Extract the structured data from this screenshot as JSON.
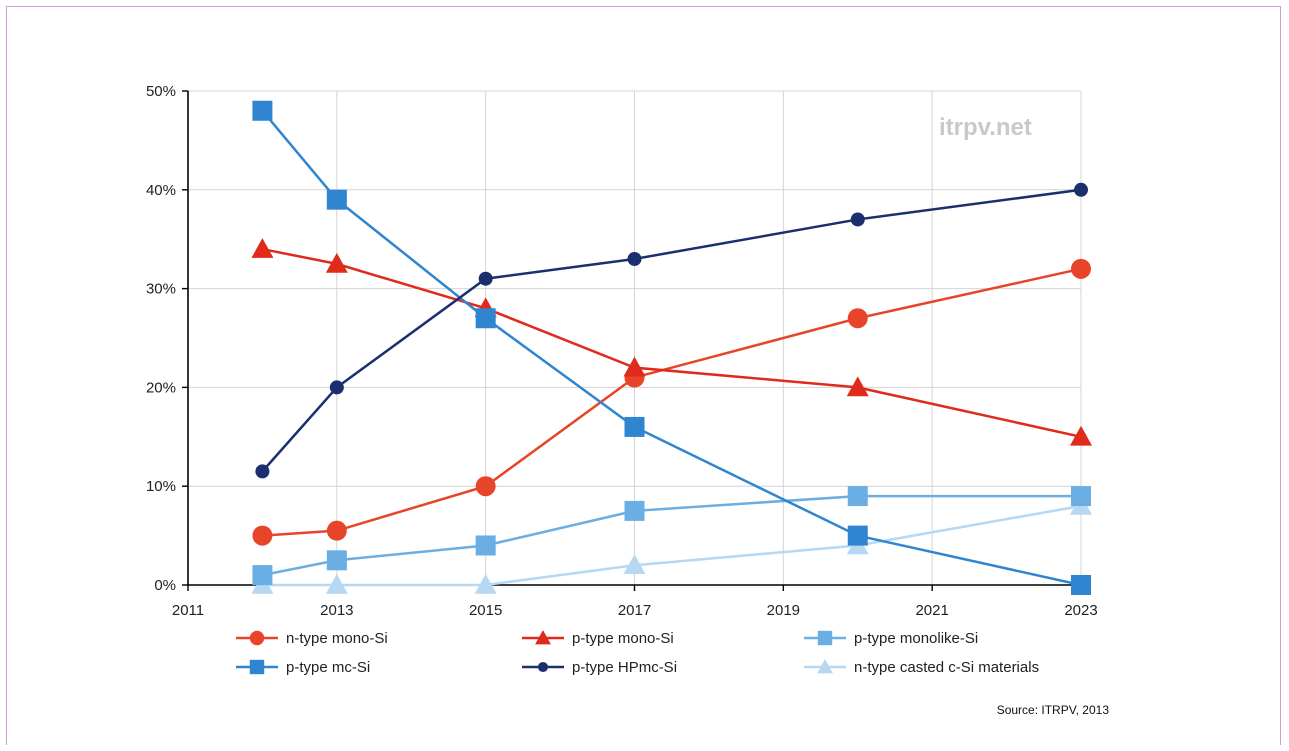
{
  "watermark": "itrpv.net",
  "source": "Source: ITRPV, 2013",
  "chart_data": {
    "type": "line",
    "title": "",
    "xlabel": "",
    "ylabel": "",
    "xlim": [
      2011,
      2023
    ],
    "ylim": [
      0,
      50
    ],
    "x_ticks": [
      2011,
      2013,
      2015,
      2017,
      2019,
      2021,
      2023
    ],
    "y_ticks": [
      0,
      10,
      20,
      30,
      40,
      50
    ],
    "y_tick_labels": [
      "0%",
      "10%",
      "20%",
      "30%",
      "40%",
      "50%"
    ],
    "grid": true,
    "legend_position": "bottom",
    "series": [
      {
        "name": "n-type mono-Si",
        "marker": "circle",
        "color": "#e8442a",
        "x": [
          2012,
          2013,
          2015,
          2017,
          2020,
          2023
        ],
        "values": [
          5,
          5.5,
          10,
          21,
          27,
          32
        ]
      },
      {
        "name": "p-type mono-Si",
        "marker": "triangle",
        "color": "#e02a1c",
        "x": [
          2012,
          2013,
          2015,
          2017,
          2020,
          2023
        ],
        "values": [
          34,
          32.5,
          28,
          22,
          20,
          15
        ]
      },
      {
        "name": "p-type monolike-Si",
        "marker": "square",
        "color": "#6aaee3",
        "x": [
          2012,
          2013,
          2015,
          2017,
          2020,
          2023
        ],
        "values": [
          1,
          2.5,
          4,
          7.5,
          9,
          9
        ]
      },
      {
        "name": "p-type mc-Si",
        "marker": "square",
        "color": "#2f85cf",
        "x": [
          2012,
          2013,
          2015,
          2017,
          2020,
          2023
        ],
        "values": [
          48,
          39,
          27,
          16,
          5,
          0
        ]
      },
      {
        "name": "p-type HPmc-Si",
        "marker": "circle-small",
        "color": "#1b2f6e",
        "x": [
          2012,
          2013,
          2015,
          2017,
          2020,
          2023
        ],
        "values": [
          11.5,
          20,
          31,
          33,
          37,
          40
        ]
      },
      {
        "name": "n-type casted c-Si materials",
        "marker": "triangle",
        "color": "#b6d8f2",
        "x": [
          2012,
          2013,
          2015,
          2017,
          2020,
          2023
        ],
        "values": [
          0,
          0,
          0,
          2,
          4,
          8
        ]
      }
    ]
  }
}
